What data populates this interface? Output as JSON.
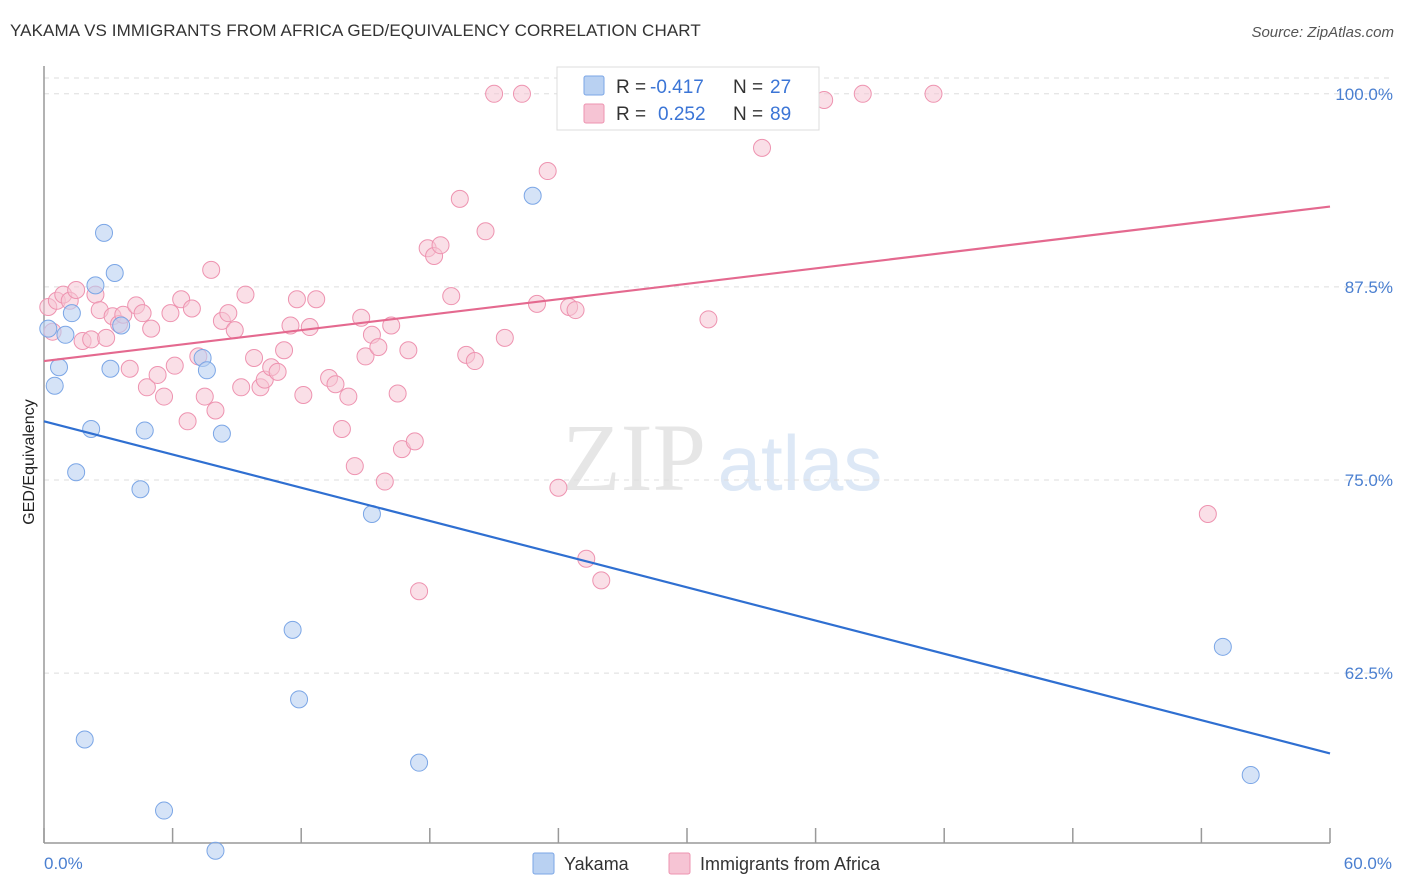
{
  "title": "YAKAMA VS IMMIGRANTS FROM AFRICA GED/EQUIVALENCY CORRELATION CHART",
  "source": "Source: ZipAtlas.com",
  "watermark": {
    "zip": "ZIP",
    "atlas": "atlas"
  },
  "colors": {
    "blue": "#7ba6e6",
    "blue_fill": "#b9d1f2",
    "blue_line": "#2f6fd1",
    "pink": "#ee93b0",
    "pink_fill": "#f6c4d4",
    "pink_line": "#e4698f",
    "axis_text": "#4a7fd0",
    "grid": "#dddddd"
  },
  "legend": {
    "rows": [
      {
        "r_label": "R =",
        "r_value": "-0.417",
        "n_label": "N =",
        "n_value": "27"
      },
      {
        "r_label": "R =",
        "r_value": "0.252",
        "n_label": "N =",
        "n_value": "89"
      }
    ]
  },
  "chart_data": {
    "type": "scatter",
    "title": "YAKAMA VS IMMIGRANTS FROM AFRICA GED/EQUIVALENCY CORRELATION CHART",
    "xlabel": "",
    "ylabel": "GED/Equivalency",
    "xlim": [
      0,
      60
    ],
    "ylim": [
      51.5,
      101.8
    ],
    "x_tick_labels": [
      "0.0%",
      "60.0%"
    ],
    "y_ticks": [
      62.5,
      75.0,
      87.5,
      100.0
    ],
    "y_tick_labels": [
      "62.5%",
      "75.0%",
      "87.5%",
      "100.0%"
    ],
    "grid": true,
    "legend_position": "top-center",
    "series": [
      {
        "name": "Yakama",
        "r": -0.417,
        "n": 27,
        "trend": {
          "x": [
            0,
            60
          ],
          "y": [
            78.8,
            57.3
          ]
        },
        "points": [
          [
            0.2,
            84.8
          ],
          [
            0.5,
            81.1
          ],
          [
            0.7,
            82.3
          ],
          [
            1.0,
            84.4
          ],
          [
            1.3,
            85.8
          ],
          [
            1.5,
            75.5
          ],
          [
            1.9,
            58.2
          ],
          [
            2.2,
            78.3
          ],
          [
            2.4,
            87.6
          ],
          [
            2.8,
            91.0
          ],
          [
            3.1,
            82.2
          ],
          [
            3.3,
            88.4
          ],
          [
            3.6,
            85.0
          ],
          [
            4.5,
            74.4
          ],
          [
            4.7,
            78.2
          ],
          [
            5.6,
            53.6
          ],
          [
            7.4,
            82.9
          ],
          [
            7.6,
            82.1
          ],
          [
            8.0,
            51.0
          ],
          [
            8.3,
            78.0
          ],
          [
            11.6,
            65.3
          ],
          [
            11.9,
            60.8
          ],
          [
            15.3,
            72.8
          ],
          [
            17.5,
            56.7
          ],
          [
            22.8,
            93.4
          ],
          [
            55.0,
            64.2
          ],
          [
            56.3,
            55.9
          ]
        ]
      },
      {
        "name": "Immigrants from Africa",
        "r": 0.252,
        "n": 89,
        "trend": {
          "x": [
            0,
            60
          ],
          "y": [
            82.7,
            92.7
          ]
        },
        "points": [
          [
            0.2,
            86.2
          ],
          [
            0.4,
            84.6
          ],
          [
            0.6,
            86.6
          ],
          [
            0.9,
            87.0
          ],
          [
            1.2,
            86.6
          ],
          [
            1.5,
            87.3
          ],
          [
            1.8,
            84.0
          ],
          [
            2.2,
            84.1
          ],
          [
            2.4,
            87.0
          ],
          [
            2.6,
            86.0
          ],
          [
            2.9,
            84.2
          ],
          [
            3.2,
            85.6
          ],
          [
            3.5,
            85.1
          ],
          [
            3.7,
            85.7
          ],
          [
            4.0,
            82.2
          ],
          [
            4.3,
            86.3
          ],
          [
            4.6,
            85.8
          ],
          [
            4.8,
            81.0
          ],
          [
            5.0,
            84.8
          ],
          [
            5.3,
            81.8
          ],
          [
            5.6,
            80.4
          ],
          [
            5.9,
            85.8
          ],
          [
            6.1,
            82.4
          ],
          [
            6.4,
            86.7
          ],
          [
            6.7,
            78.8
          ],
          [
            6.9,
            86.1
          ],
          [
            7.2,
            83.0
          ],
          [
            7.5,
            80.4
          ],
          [
            7.8,
            88.6
          ],
          [
            8.0,
            79.5
          ],
          [
            8.3,
            85.3
          ],
          [
            8.6,
            85.8
          ],
          [
            8.9,
            84.7
          ],
          [
            9.2,
            81.0
          ],
          [
            9.4,
            87.0
          ],
          [
            9.8,
            82.9
          ],
          [
            10.1,
            81.0
          ],
          [
            10.3,
            81.5
          ],
          [
            10.6,
            82.3
          ],
          [
            10.9,
            82.0
          ],
          [
            11.2,
            83.4
          ],
          [
            11.5,
            85.0
          ],
          [
            11.8,
            86.7
          ],
          [
            12.1,
            80.5
          ],
          [
            12.4,
            84.9
          ],
          [
            12.7,
            86.7
          ],
          [
            13.3,
            81.6
          ],
          [
            13.6,
            81.2
          ],
          [
            13.9,
            78.3
          ],
          [
            14.2,
            80.4
          ],
          [
            14.5,
            75.9
          ],
          [
            14.8,
            85.5
          ],
          [
            15.0,
            83.0
          ],
          [
            15.3,
            84.4
          ],
          [
            15.6,
            83.6
          ],
          [
            15.9,
            74.9
          ],
          [
            16.2,
            85.0
          ],
          [
            16.5,
            80.6
          ],
          [
            16.7,
            77.0
          ],
          [
            17.0,
            83.4
          ],
          [
            17.3,
            77.5
          ],
          [
            17.5,
            67.8
          ],
          [
            17.9,
            90.0
          ],
          [
            18.2,
            89.5
          ],
          [
            18.5,
            90.2
          ],
          [
            19.0,
            86.9
          ],
          [
            19.4,
            93.2
          ],
          [
            19.7,
            83.1
          ],
          [
            20.1,
            82.7
          ],
          [
            20.6,
            91.1
          ],
          [
            21.0,
            100.0
          ],
          [
            21.5,
            84.2
          ],
          [
            22.3,
            100.0
          ],
          [
            23.0,
            86.4
          ],
          [
            23.5,
            95.0
          ],
          [
            24.0,
            74.5
          ],
          [
            24.5,
            86.2
          ],
          [
            24.8,
            86.0
          ],
          [
            25.3,
            69.9
          ],
          [
            26.0,
            68.5
          ],
          [
            26.4,
            100.0
          ],
          [
            27.5,
            100.0
          ],
          [
            30.0,
            100.0
          ],
          [
            31.0,
            85.4
          ],
          [
            33.5,
            96.5
          ],
          [
            36.4,
            99.6
          ],
          [
            38.2,
            100.0
          ],
          [
            41.5,
            100.0
          ],
          [
            54.3,
            72.8
          ]
        ]
      }
    ]
  },
  "bottom_legend": [
    {
      "label": "Yakama"
    },
    {
      "label": "Immigrants from Africa"
    }
  ]
}
